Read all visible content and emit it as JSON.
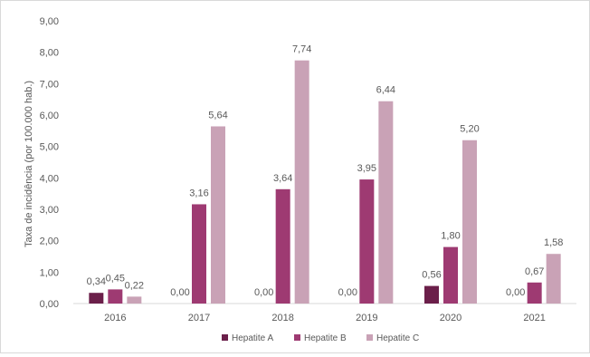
{
  "chart_data": {
    "type": "bar",
    "title": "",
    "xlabel": "",
    "ylabel": "Taxa de incidência (por 100.000 hab.)",
    "ylim": [
      0,
      9
    ],
    "yticks": [
      "0,00",
      "1,00",
      "2,00",
      "3,00",
      "4,00",
      "5,00",
      "6,00",
      "7,00",
      "8,00",
      "9,00"
    ],
    "categories": [
      "2016",
      "2017",
      "2018",
      "2019",
      "2020",
      "2021"
    ],
    "series": [
      {
        "name": "Hepatite A",
        "color": "#6b1f4a",
        "values": [
          0.34,
          0.0,
          0.0,
          0.0,
          0.56,
          0.0
        ],
        "labels": [
          "0,34",
          "0,00",
          "0,00",
          "0,00",
          "0,56",
          "0,00"
        ]
      },
      {
        "name": "Hepatite B",
        "color": "#9e3a72",
        "values": [
          0.45,
          3.16,
          3.64,
          3.95,
          1.8,
          0.67
        ],
        "labels": [
          "0,45",
          "3,16",
          "3,64",
          "3,95",
          "1,80",
          "0,67"
        ]
      },
      {
        "name": "Hepatite C",
        "color": "#c9a2b6",
        "values": [
          0.22,
          5.64,
          7.74,
          6.44,
          5.2,
          1.58
        ],
        "labels": [
          "0,22",
          "5,64",
          "7,74",
          "6,44",
          "5,20",
          "1,58"
        ]
      }
    ],
    "grid": false,
    "legend": "bottom"
  }
}
